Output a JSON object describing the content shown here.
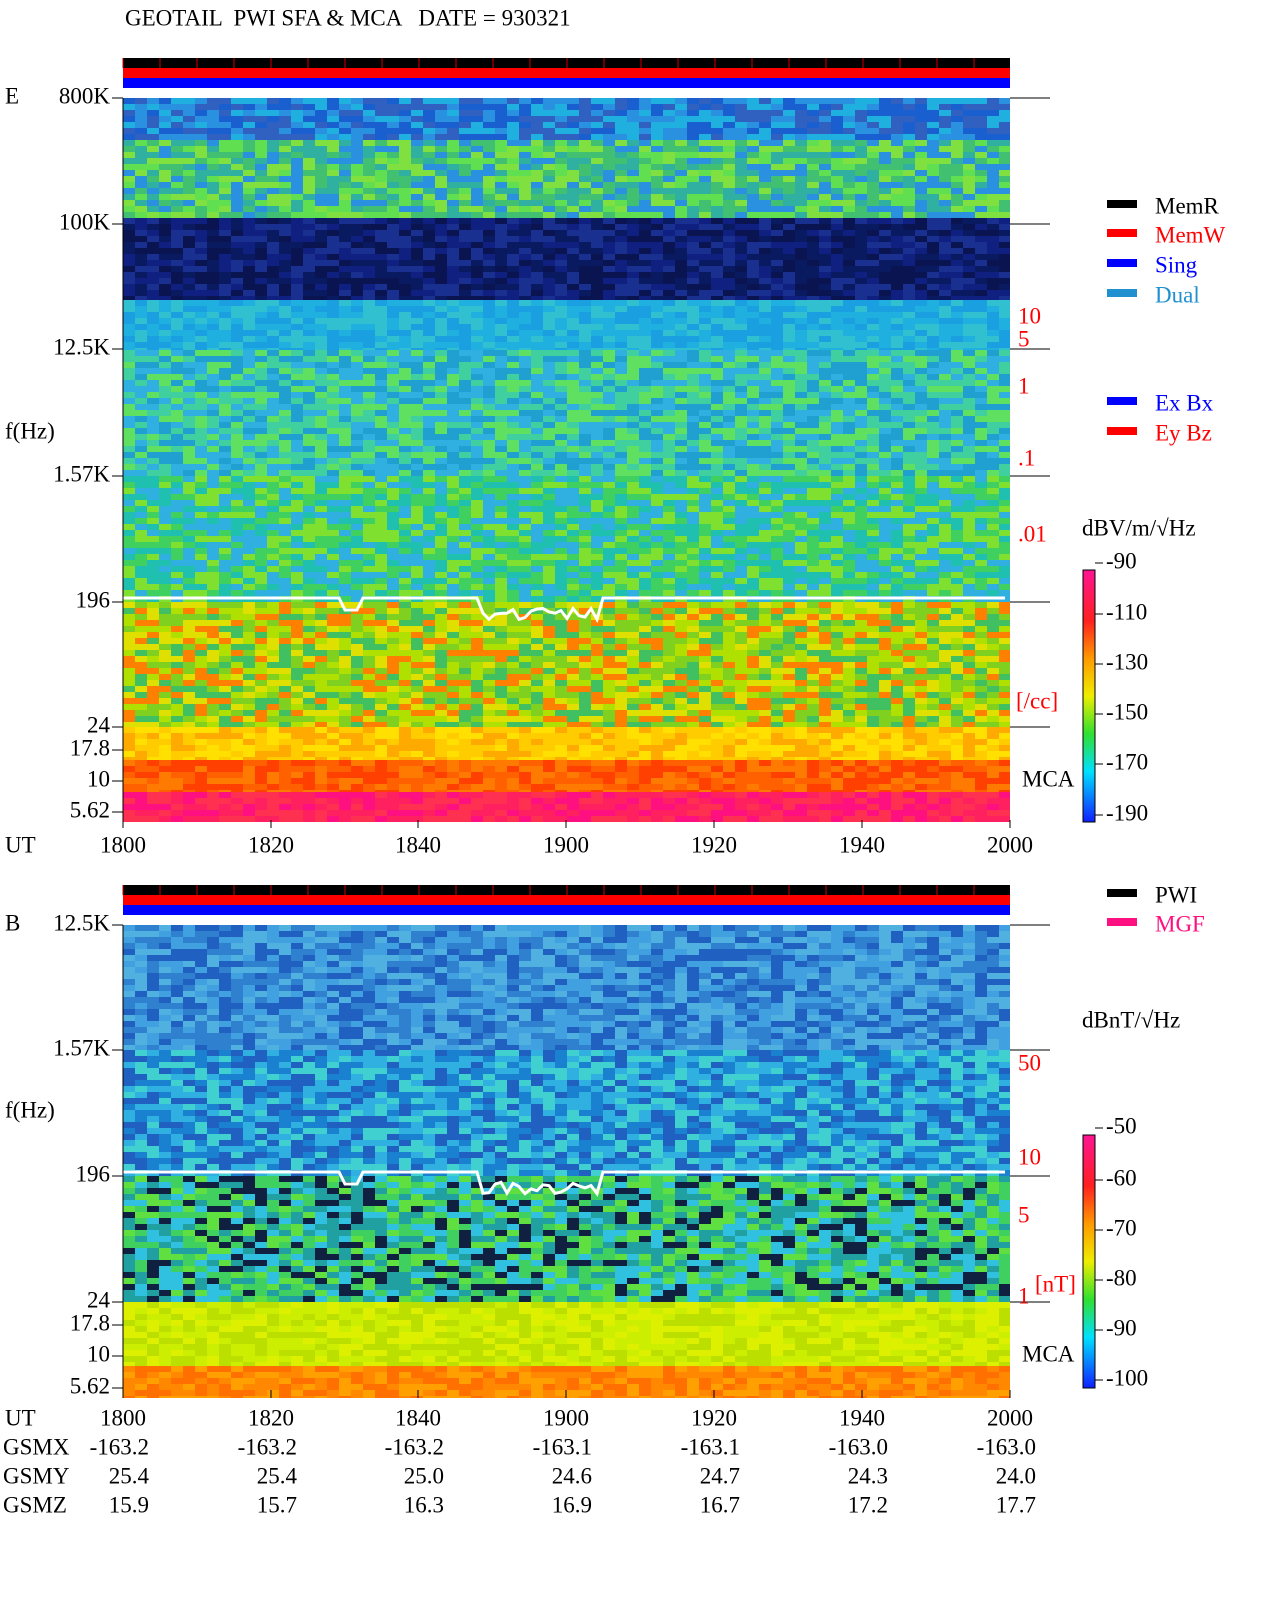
{
  "title": "GEOTAIL  PWI SFA & MCA   DATE = 930321",
  "panels": [
    {
      "label": "E",
      "y_axis_label": "f(Hz)",
      "freq_ticks": [
        "800K",
        "100K",
        "12.5K",
        "1.57K",
        "196",
        "24",
        "17.8",
        "10",
        "5.62"
      ],
      "right_ticks": [
        "10",
        "5",
        "1",
        ".1",
        ".01"
      ],
      "right_unit": "[/cc]",
      "mca": "MCA",
      "legend": [
        {
          "label": "MemR",
          "color": "#000000"
        },
        {
          "label": "MemW",
          "color": "#ff0000"
        },
        {
          "label": "Sing",
          "color": "#0000ff"
        },
        {
          "label": "Dual",
          "color": "#2090d0"
        }
      ],
      "legend2": [
        {
          "label": "Ex Bx",
          "color": "#0000ff"
        },
        {
          "label": "Ey Bz",
          "color": "#ff0000"
        }
      ],
      "colorbar_label": "dBV/m/√Hz",
      "colorbar_ticks": [
        "-90",
        "-110",
        "-130",
        "-150",
        "-170",
        "-190"
      ],
      "time_label": "UT",
      "time_ticks": [
        "1800",
        "1820",
        "1840",
        "1900",
        "1920",
        "1940",
        "2000"
      ]
    },
    {
      "label": "B",
      "y_axis_label": "f(Hz)",
      "freq_ticks": [
        "12.5K",
        "1.57K",
        "196",
        "24",
        "17.8",
        "10",
        "5.62"
      ],
      "right_ticks": [
        "50",
        "10",
        "5",
        "1"
      ],
      "right_unit": "[nT]",
      "mca": "MCA",
      "legend": [
        {
          "label": "PWI",
          "color": "#000000"
        },
        {
          "label": "MGF",
          "color": "#ff1080"
        }
      ],
      "colorbar_label": "dBnT/√Hz",
      "colorbar_ticks": [
        "-50",
        "-60",
        "-70",
        "-80",
        "-90",
        "-100"
      ],
      "time_label": "UT",
      "time_ticks": [
        "1800",
        "1820",
        "1840",
        "1900",
        "1920",
        "1940",
        "2000"
      ]
    }
  ],
  "ephemeris": {
    "rows": [
      {
        "label": "GSMX",
        "values": [
          "-163.2",
          "-163.2",
          "-163.2",
          "-163.1",
          "-163.1",
          "-163.0",
          "-163.0"
        ]
      },
      {
        "label": "GSMY",
        "values": [
          "25.4",
          "25.4",
          "25.0",
          "24.6",
          "24.7",
          "24.3",
          "24.0"
        ]
      },
      {
        "label": "GSMZ",
        "values": [
          "15.9",
          "15.7",
          "16.3",
          "16.9",
          "16.7",
          "17.2",
          "17.7"
        ]
      }
    ]
  }
}
